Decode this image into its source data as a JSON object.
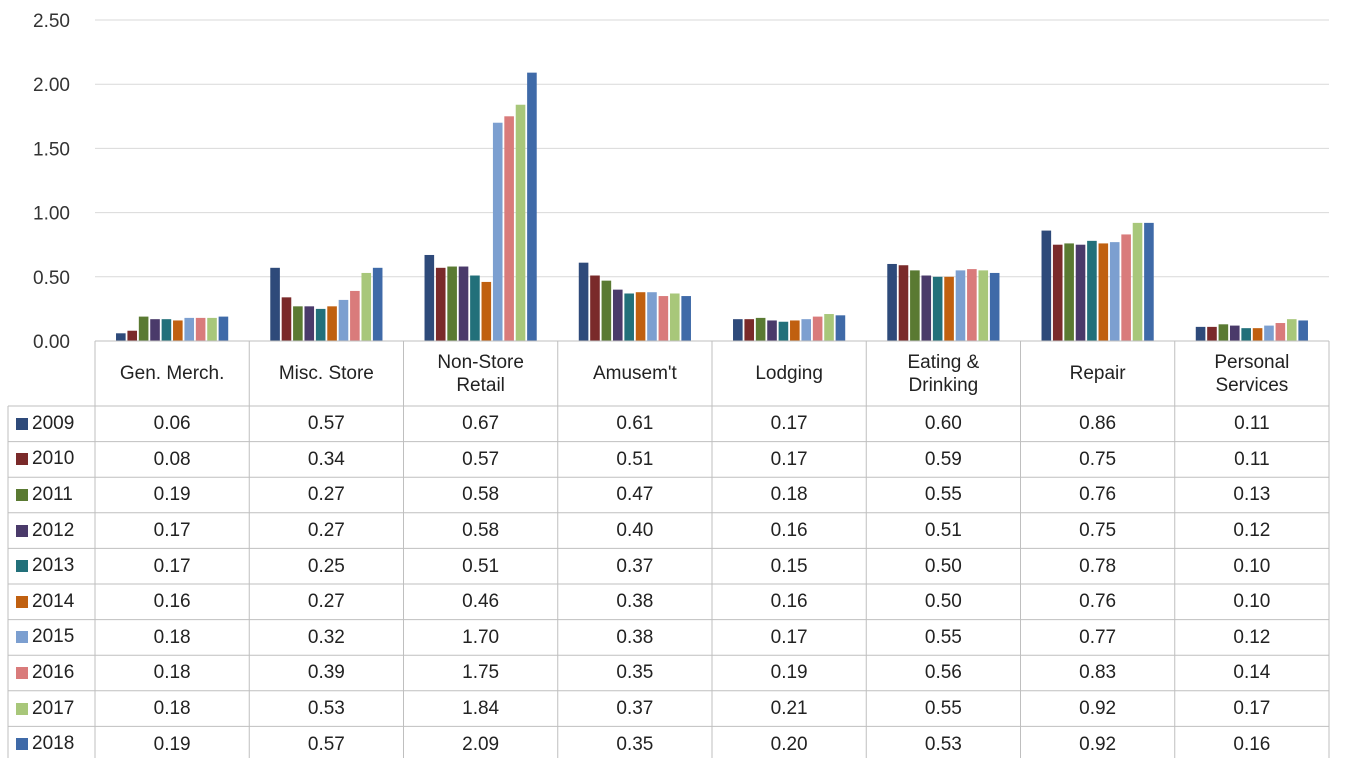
{
  "chart_data": {
    "type": "bar",
    "title": "",
    "xlabel": "",
    "ylabel": "",
    "ylim": [
      0,
      2.5
    ],
    "yticks": [
      "0.00",
      "0.50",
      "1.00",
      "1.50",
      "2.00",
      "2.50"
    ],
    "grid": true,
    "legend": "data-table-left",
    "categories": [
      "Gen. Merch.",
      "Misc. Store",
      "Non-Store\nRetail",
      "Amusem't",
      "Lodging",
      "Eating &\nDrinking",
      "Repair",
      "Personal\nServices"
    ],
    "series": [
      {
        "name": "2009",
        "color": "#2e4a7a",
        "values": [
          0.06,
          0.57,
          0.67,
          0.61,
          0.17,
          0.6,
          0.86,
          0.11
        ],
        "labels": [
          "0.06",
          "0.57",
          "0.67",
          "0.61",
          "0.17",
          "0.60",
          "0.86",
          "0.11"
        ]
      },
      {
        "name": "2010",
        "color": "#7a2a2a",
        "values": [
          0.08,
          0.34,
          0.57,
          0.51,
          0.17,
          0.59,
          0.75,
          0.11
        ],
        "labels": [
          "0.08",
          "0.34",
          "0.57",
          "0.51",
          "0.17",
          "0.59",
          "0.75",
          "0.11"
        ]
      },
      {
        "name": "2011",
        "color": "#5a7a32",
        "values": [
          0.19,
          0.27,
          0.58,
          0.47,
          0.18,
          0.55,
          0.76,
          0.13
        ],
        "labels": [
          "0.19",
          "0.27",
          "0.58",
          "0.47",
          "0.18",
          "0.55",
          "0.76",
          "0.13"
        ]
      },
      {
        "name": "2012",
        "color": "#4a3a6a",
        "values": [
          0.17,
          0.27,
          0.58,
          0.4,
          0.16,
          0.51,
          0.75,
          0.12
        ],
        "labels": [
          "0.17",
          "0.27",
          "0.58",
          "0.40",
          "0.16",
          "0.51",
          "0.75",
          "0.12"
        ]
      },
      {
        "name": "2013",
        "color": "#22707a",
        "values": [
          0.17,
          0.25,
          0.51,
          0.37,
          0.15,
          0.5,
          0.78,
          0.1
        ],
        "labels": [
          "0.17",
          "0.25",
          "0.51",
          "0.37",
          "0.15",
          "0.50",
          "0.78",
          "0.10"
        ]
      },
      {
        "name": "2014",
        "color": "#c06010",
        "values": [
          0.16,
          0.27,
          0.46,
          0.38,
          0.16,
          0.5,
          0.76,
          0.1
        ],
        "labels": [
          "0.16",
          "0.27",
          "0.46",
          "0.38",
          "0.16",
          "0.50",
          "0.76",
          "0.10"
        ]
      },
      {
        "name": "2015",
        "color": "#7c9fd0",
        "values": [
          0.18,
          0.32,
          1.7,
          0.38,
          0.17,
          0.55,
          0.77,
          0.12
        ],
        "labels": [
          "0.18",
          "0.32",
          "1.70",
          "0.38",
          "0.17",
          "0.55",
          "0.77",
          "0.12"
        ]
      },
      {
        "name": "2016",
        "color": "#d97b7b",
        "values": [
          0.18,
          0.39,
          1.75,
          0.35,
          0.19,
          0.56,
          0.83,
          0.14
        ],
        "labels": [
          "0.18",
          "0.39",
          "1.75",
          "0.35",
          "0.19",
          "0.56",
          "0.83",
          "0.14"
        ]
      },
      {
        "name": "2017",
        "color": "#a8c77a",
        "values": [
          0.18,
          0.53,
          1.84,
          0.37,
          0.21,
          0.55,
          0.92,
          0.17
        ],
        "labels": [
          "0.18",
          "0.53",
          "1.84",
          "0.37",
          "0.21",
          "0.55",
          "0.92",
          "0.17"
        ]
      },
      {
        "name": "2018",
        "color": "#3f6aa8",
        "values": [
          0.19,
          0.57,
          2.09,
          0.35,
          0.2,
          0.53,
          0.92,
          0.16
        ],
        "labels": [
          "0.19",
          "0.57",
          "2.09",
          "0.35",
          "0.20",
          "0.53",
          "0.92",
          "0.16"
        ]
      }
    ]
  }
}
